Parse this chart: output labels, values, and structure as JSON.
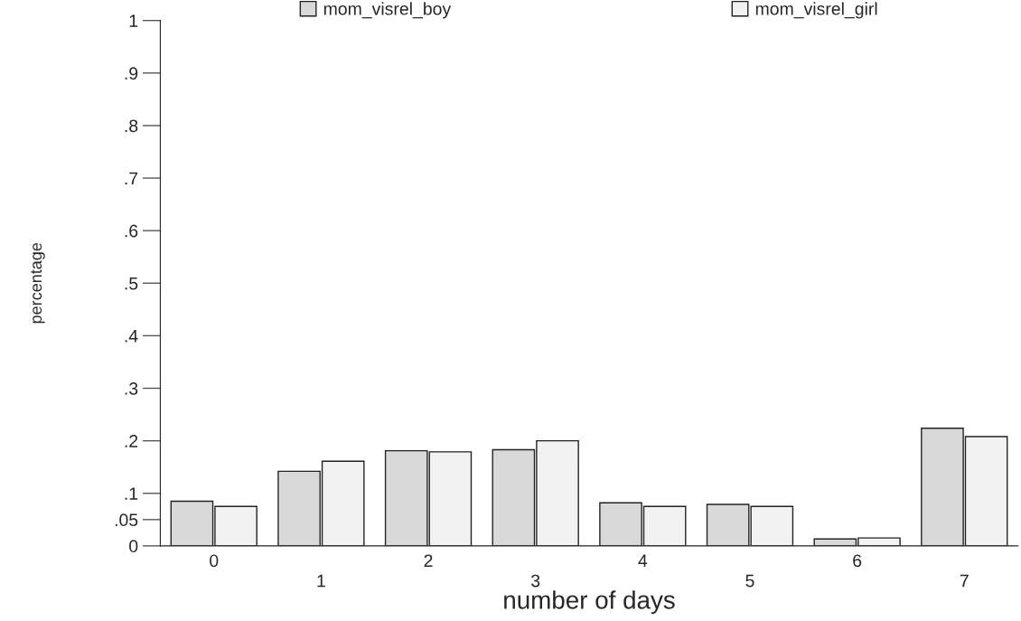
{
  "chart_data": {
    "type": "bar",
    "xlabel": "number of days",
    "ylabel": "percentage",
    "categories": [
      "0",
      "1",
      "2",
      "3",
      "4",
      "5",
      "6",
      "7"
    ],
    "series": [
      {
        "name": "mom_visrel_boy",
        "color": "#d9d9d9",
        "values": [
          0.085,
          0.142,
          0.181,
          0.183,
          0.082,
          0.079,
          0.013,
          0.224
        ]
      },
      {
        "name": "mom_visrel_girl",
        "color": "#f2f2f2",
        "values": [
          0.075,
          0.161,
          0.179,
          0.2,
          0.075,
          0.075,
          0.015,
          0.208
        ]
      }
    ],
    "ylim": [
      0,
      1
    ],
    "yticks": [
      0,
      {
        "value": 0.05,
        "label": ".05"
      },
      {
        "value": 0.1,
        "label": ".1"
      },
      {
        "value": 0.2,
        "label": ".2"
      },
      {
        "value": 0.3,
        "label": ".3"
      },
      {
        "value": 0.4,
        "label": ".4"
      },
      {
        "value": 0.5,
        "label": ".5"
      },
      {
        "value": 0.6,
        "label": ".6"
      },
      {
        "value": 0.7,
        "label": ".7"
      },
      {
        "value": 0.8,
        "label": ".8"
      },
      {
        "value": 0.9,
        "label": ".9"
      },
      1
    ],
    "grid": false,
    "legend": "top"
  }
}
